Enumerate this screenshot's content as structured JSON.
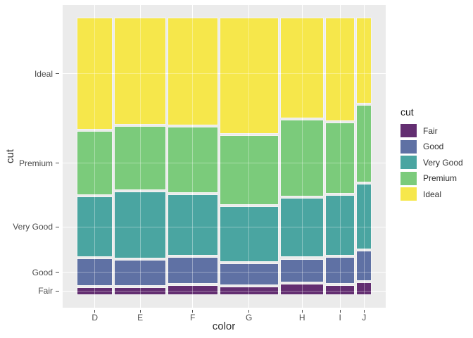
{
  "style": {
    "panel_bg": "#EBEBEB",
    "outer_bg": "#FFFFFF",
    "grid_color": "#FFFFFF",
    "tick_color": "#4d4d4d",
    "title_color": "#303030"
  },
  "chart_data": {
    "type": "mosaic",
    "x_title": "color",
    "y_title": "cut",
    "legend_title": "cut",
    "x_categories": [
      "D",
      "E",
      "F",
      "G",
      "H",
      "I",
      "J"
    ],
    "y_categories_bottom_to_top": [
      "Fair",
      "Good",
      "Very Good",
      "Premium",
      "Ideal"
    ],
    "column_weights": [
      0.1256,
      0.1816,
      0.1769,
      0.2093,
      0.1539,
      0.1005,
      0.0521
    ],
    "cut_proportions_by_color": {
      "D": [
        0.0241,
        0.0977,
        0.2233,
        0.2366,
        0.4183
      ],
      "E": [
        0.0229,
        0.0952,
        0.245,
        0.2385,
        0.3984
      ],
      "F": [
        0.0327,
        0.0953,
        0.2268,
        0.2443,
        0.4009
      ],
      "G": [
        0.0278,
        0.0771,
        0.2036,
        0.2589,
        0.4326
      ],
      "H": [
        0.0365,
        0.0845,
        0.2196,
        0.2842,
        0.3752
      ],
      "I": [
        0.0323,
        0.0963,
        0.2221,
        0.2634,
        0.3859
      ],
      "J": [
        0.0424,
        0.1093,
        0.2415,
        0.2877,
        0.3191
      ]
    },
    "colors": {
      "Fair": "#632E71",
      "Good": "#5F71A4",
      "Very Good": "#4AA5A1",
      "Premium": "#7BCB7B",
      "Ideal": "#F6E74B"
    },
    "legend_entries": [
      {
        "label": "Fair",
        "color": "#632E71"
      },
      {
        "label": "Good",
        "color": "#5F71A4"
      },
      {
        "label": "Very Good",
        "color": "#4AA5A1"
      },
      {
        "label": "Premium",
        "color": "#7BCB7B"
      },
      {
        "label": "Ideal",
        "color": "#F6E74B"
      }
    ]
  }
}
